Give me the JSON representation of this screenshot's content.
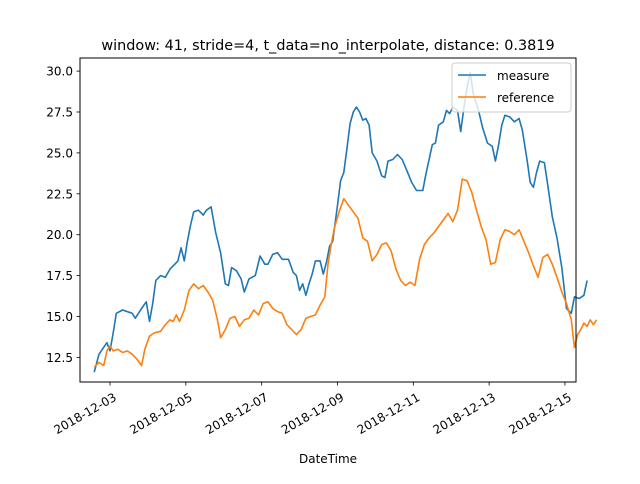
{
  "chart_data": {
    "type": "line",
    "title": "window: 41, stride=4, t_data=no_interpolate, distance: 0.3819",
    "xlabel": "DateTime",
    "ylabel": "",
    "ylim": [
      11.0,
      30.8
    ],
    "xlim": [
      "2018-12-02 05:00",
      "2018-12-15 07:00"
    ],
    "x_ticks": [
      "2018-12-03",
      "2018-12-05",
      "2018-12-07",
      "2018-12-09",
      "2018-12-11",
      "2018-12-13",
      "2018-12-15"
    ],
    "y_ticks": [
      "12.5",
      "15.0",
      "17.5",
      "20.0",
      "22.5",
      "25.0",
      "27.5",
      "30.0"
    ],
    "y_tick_values": [
      12.5,
      15.0,
      17.5,
      20.0,
      22.5,
      25.0,
      27.5,
      30.0
    ],
    "grid": false,
    "legend_position": "top-right",
    "series": [
      {
        "name": "measure",
        "color": "#1f77b4",
        "points": [
          [
            "2018-12-02 14:00",
            11.6
          ],
          [
            "2018-12-02 17:00",
            12.7
          ],
          [
            "2018-12-02 22:00",
            13.4
          ],
          [
            "2018-12-03 00:00",
            12.9
          ],
          [
            "2018-12-03 02:00",
            14.0
          ],
          [
            "2018-12-03 04:00",
            15.2
          ],
          [
            "2018-12-03 08:00",
            15.4
          ],
          [
            "2018-12-03 14:00",
            15.2
          ],
          [
            "2018-12-03 16:00",
            14.9
          ],
          [
            "2018-12-03 20:00",
            15.5
          ],
          [
            "2018-12-03 23:00",
            15.9
          ],
          [
            "2018-12-04 01:00",
            14.7
          ],
          [
            "2018-12-04 03:00",
            15.8
          ],
          [
            "2018-12-04 05:00",
            17.2
          ],
          [
            "2018-12-04 08:00",
            17.5
          ],
          [
            "2018-12-04 11:00",
            17.4
          ],
          [
            "2018-12-04 14:00",
            17.9
          ],
          [
            "2018-12-04 17:00",
            18.2
          ],
          [
            "2018-12-04 19:00",
            18.4
          ],
          [
            "2018-12-04 21:00",
            19.2
          ],
          [
            "2018-12-04 23:00",
            18.4
          ],
          [
            "2018-12-05 01:00",
            19.6
          ],
          [
            "2018-12-05 03:00",
            20.6
          ],
          [
            "2018-12-05 05:00",
            21.4
          ],
          [
            "2018-12-05 08:00",
            21.5
          ],
          [
            "2018-12-05 11:00",
            21.2
          ],
          [
            "2018-12-05 13:00",
            21.5
          ],
          [
            "2018-12-05 16:00",
            21.7
          ],
          [
            "2018-12-05 19:00",
            20.1
          ],
          [
            "2018-12-05 22:00",
            18.9
          ],
          [
            "2018-12-06 01:00",
            17.0
          ],
          [
            "2018-12-06 03:00",
            16.9
          ],
          [
            "2018-12-06 05:00",
            18.0
          ],
          [
            "2018-12-06 08:00",
            17.8
          ],
          [
            "2018-12-06 11:00",
            17.3
          ],
          [
            "2018-12-06 13:00",
            16.5
          ],
          [
            "2018-12-06 16:00",
            17.3
          ],
          [
            "2018-12-06 20:00",
            17.5
          ],
          [
            "2018-12-06 23:00",
            18.7
          ],
          [
            "2018-12-07 02:00",
            18.2
          ],
          [
            "2018-12-07 04:00",
            18.2
          ],
          [
            "2018-12-07 07:00",
            18.8
          ],
          [
            "2018-12-07 10:00",
            18.9
          ],
          [
            "2018-12-07 13:00",
            18.5
          ],
          [
            "2018-12-07 17:00",
            18.5
          ],
          [
            "2018-12-07 20:00",
            17.7
          ],
          [
            "2018-12-07 22:00",
            17.5
          ],
          [
            "2018-12-08 00:00",
            16.6
          ],
          [
            "2018-12-08 02:00",
            17.0
          ],
          [
            "2018-12-08 04:00",
            16.3
          ],
          [
            "2018-12-08 06:00",
            17.0
          ],
          [
            "2018-12-08 08:00",
            17.6
          ],
          [
            "2018-12-08 10:00",
            18.4
          ],
          [
            "2018-12-08 13:00",
            18.4
          ],
          [
            "2018-12-08 15:00",
            17.6
          ],
          [
            "2018-12-08 17:00",
            18.3
          ],
          [
            "2018-12-08 19:00",
            19.3
          ],
          [
            "2018-12-08 21:00",
            19.6
          ],
          [
            "2018-12-09 00:00",
            21.8
          ],
          [
            "2018-12-09 02:00",
            23.3
          ],
          [
            "2018-12-09 04:00",
            23.8
          ],
          [
            "2018-12-09 06:00",
            25.3
          ],
          [
            "2018-12-09 08:00",
            26.8
          ],
          [
            "2018-12-09 10:00",
            27.5
          ],
          [
            "2018-12-09 12:00",
            27.8
          ],
          [
            "2018-12-09 14:00",
            27.5
          ],
          [
            "2018-12-09 16:00",
            27.0
          ],
          [
            "2018-12-09 18:00",
            27.1
          ],
          [
            "2018-12-09 20:00",
            26.7
          ],
          [
            "2018-12-09 22:00",
            25.0
          ],
          [
            "2018-12-10 01:00",
            24.5
          ],
          [
            "2018-12-10 04:00",
            23.6
          ],
          [
            "2018-12-10 06:00",
            23.5
          ],
          [
            "2018-12-10 08:00",
            24.5
          ],
          [
            "2018-12-10 11:00",
            24.6
          ],
          [
            "2018-12-10 14:00",
            24.9
          ],
          [
            "2018-12-10 17:00",
            24.6
          ],
          [
            "2018-12-10 20:00",
            23.9
          ],
          [
            "2018-12-10 23:00",
            23.2
          ],
          [
            "2018-12-11 02:00",
            22.7
          ],
          [
            "2018-12-11 06:00",
            22.7
          ],
          [
            "2018-12-11 08:00",
            23.7
          ],
          [
            "2018-12-11 10:00",
            24.6
          ],
          [
            "2018-12-11 12:00",
            25.5
          ],
          [
            "2018-12-11 14:00",
            25.6
          ],
          [
            "2018-12-11 16:00",
            26.7
          ],
          [
            "2018-12-11 19:00",
            26.9
          ],
          [
            "2018-12-11 21:00",
            27.6
          ],
          [
            "2018-12-11 23:00",
            27.4
          ],
          [
            "2018-12-12 01:00",
            27.8
          ],
          [
            "2018-12-12 04:00",
            27.6
          ],
          [
            "2018-12-12 06:00",
            26.3
          ],
          [
            "2018-12-12 08:00",
            27.7
          ],
          [
            "2018-12-12 10:00",
            29.0
          ],
          [
            "2018-12-12 12:00",
            29.9
          ],
          [
            "2018-12-12 14:00",
            28.6
          ],
          [
            "2018-12-12 17:00",
            27.7
          ],
          [
            "2018-12-12 20:00",
            26.5
          ],
          [
            "2018-12-12 23:00",
            25.6
          ],
          [
            "2018-12-13 02:00",
            25.4
          ],
          [
            "2018-12-13 04:00",
            24.5
          ],
          [
            "2018-12-13 06:00",
            25.5
          ],
          [
            "2018-12-13 08:00",
            26.7
          ],
          [
            "2018-12-13 10:00",
            27.3
          ],
          [
            "2018-12-13 13:00",
            27.2
          ],
          [
            "2018-12-13 16:00",
            26.9
          ],
          [
            "2018-12-13 19:00",
            27.1
          ],
          [
            "2018-12-13 21:00",
            26.4
          ],
          [
            "2018-12-14 00:00",
            24.6
          ],
          [
            "2018-12-14 02:00",
            23.2
          ],
          [
            "2018-12-14 04:00",
            22.9
          ],
          [
            "2018-12-14 06:00",
            23.8
          ],
          [
            "2018-12-14 08:00",
            24.5
          ],
          [
            "2018-12-14 11:00",
            24.4
          ],
          [
            "2018-12-14 13:00",
            23.1
          ],
          [
            "2018-12-14 16:00",
            21.1
          ],
          [
            "2018-12-14 19:00",
            19.8
          ],
          [
            "2018-12-14 22:00",
            18.0
          ],
          [
            "2018-12-15 01:00",
            15.5
          ],
          [
            "2018-12-15 04:00",
            15.2
          ],
          [
            "2018-12-15 06:00",
            16.2
          ],
          [
            "2018-12-15 09:00",
            16.1
          ],
          [
            "2018-12-15 12:00",
            16.3
          ],
          [
            "2018-12-15 14:00",
            17.2
          ]
        ]
      },
      {
        "name": "reference",
        "color": "#ff7f0e",
        "points": [
          [
            "2018-12-02 14:00",
            11.9
          ],
          [
            "2018-12-02 17:00",
            12.2
          ],
          [
            "2018-12-02 20:00",
            12.0
          ],
          [
            "2018-12-02 22:00",
            12.9
          ],
          [
            "2018-12-03 00:00",
            13.2
          ],
          [
            "2018-12-03 02:00",
            12.9
          ],
          [
            "2018-12-03 05:00",
            13.0
          ],
          [
            "2018-12-03 08:00",
            12.8
          ],
          [
            "2018-12-03 11:00",
            12.9
          ],
          [
            "2018-12-03 14:00",
            12.7
          ],
          [
            "2018-12-03 17:00",
            12.4
          ],
          [
            "2018-12-03 20:00",
            12.0
          ],
          [
            "2018-12-03 22:00",
            13.0
          ],
          [
            "2018-12-04 01:00",
            13.8
          ],
          [
            "2018-12-04 04:00",
            14.0
          ],
          [
            "2018-12-04 08:00",
            14.1
          ],
          [
            "2018-12-04 11:00",
            14.5
          ],
          [
            "2018-12-04 14:00",
            14.8
          ],
          [
            "2018-12-04 16:00",
            14.7
          ],
          [
            "2018-12-04 18:00",
            15.1
          ],
          [
            "2018-12-04 20:00",
            14.7
          ],
          [
            "2018-12-04 23:00",
            15.4
          ],
          [
            "2018-12-05 02:00",
            16.6
          ],
          [
            "2018-12-05 05:00",
            17.0
          ],
          [
            "2018-12-05 08:00",
            16.7
          ],
          [
            "2018-12-05 11:00",
            16.9
          ],
          [
            "2018-12-05 14:00",
            16.5
          ],
          [
            "2018-12-05 17:00",
            16.0
          ],
          [
            "2018-12-05 20:00",
            14.8
          ],
          [
            "2018-12-05 22:00",
            13.7
          ],
          [
            "2018-12-06 01:00",
            14.2
          ],
          [
            "2018-12-06 04:00",
            14.9
          ],
          [
            "2018-12-06 07:00",
            15.0
          ],
          [
            "2018-12-06 10:00",
            14.4
          ],
          [
            "2018-12-06 13:00",
            14.8
          ],
          [
            "2018-12-06 16:00",
            14.9
          ],
          [
            "2018-12-06 19:00",
            15.4
          ],
          [
            "2018-12-06 22:00",
            15.1
          ],
          [
            "2018-12-07 01:00",
            15.8
          ],
          [
            "2018-12-07 04:00",
            15.9
          ],
          [
            "2018-12-07 07:00",
            15.5
          ],
          [
            "2018-12-07 10:00",
            15.3
          ],
          [
            "2018-12-07 13:00",
            15.2
          ],
          [
            "2018-12-07 16:00",
            14.5
          ],
          [
            "2018-12-07 19:00",
            14.2
          ],
          [
            "2018-12-07 22:00",
            13.9
          ],
          [
            "2018-12-08 01:00",
            14.2
          ],
          [
            "2018-12-08 04:00",
            14.9
          ],
          [
            "2018-12-08 07:00",
            15.0
          ],
          [
            "2018-12-08 10:00",
            15.1
          ],
          [
            "2018-12-08 13:00",
            15.7
          ],
          [
            "2018-12-08 16:00",
            16.2
          ],
          [
            "2018-12-08 18:00",
            18.2
          ],
          [
            "2018-12-08 20:00",
            19.4
          ],
          [
            "2018-12-08 22:00",
            20.4
          ],
          [
            "2018-12-09 01:00",
            21.4
          ],
          [
            "2018-12-09 04:00",
            22.2
          ],
          [
            "2018-12-09 07:00",
            21.8
          ],
          [
            "2018-12-09 10:00",
            21.4
          ],
          [
            "2018-12-09 13:00",
            21.0
          ],
          [
            "2018-12-09 16:00",
            19.8
          ],
          [
            "2018-12-09 19:00",
            19.6
          ],
          [
            "2018-12-09 22:00",
            18.4
          ],
          [
            "2018-12-10 01:00",
            18.8
          ],
          [
            "2018-12-10 04:00",
            19.4
          ],
          [
            "2018-12-10 07:00",
            19.5
          ],
          [
            "2018-12-10 10:00",
            19.0
          ],
          [
            "2018-12-10 13:00",
            17.9
          ],
          [
            "2018-12-10 16:00",
            17.2
          ],
          [
            "2018-12-10 19:00",
            16.9
          ],
          [
            "2018-12-10 22:00",
            17.1
          ],
          [
            "2018-12-11 01:00",
            16.9
          ],
          [
            "2018-12-11 04:00",
            18.5
          ],
          [
            "2018-12-11 07:00",
            19.4
          ],
          [
            "2018-12-11 10:00",
            19.8
          ],
          [
            "2018-12-11 13:00",
            20.1
          ],
          [
            "2018-12-11 16:00",
            20.5
          ],
          [
            "2018-12-11 19:00",
            20.9
          ],
          [
            "2018-12-11 22:00",
            21.3
          ],
          [
            "2018-12-12 01:00",
            20.8
          ],
          [
            "2018-12-12 04:00",
            21.5
          ],
          [
            "2018-12-12 07:00",
            23.4
          ],
          [
            "2018-12-12 10:00",
            23.3
          ],
          [
            "2018-12-12 13:00",
            22.6
          ],
          [
            "2018-12-12 16:00",
            21.5
          ],
          [
            "2018-12-12 19:00",
            20.5
          ],
          [
            "2018-12-12 22:00",
            19.7
          ],
          [
            "2018-12-13 01:00",
            18.2
          ],
          [
            "2018-12-13 04:00",
            18.3
          ],
          [
            "2018-12-13 07:00",
            19.7
          ],
          [
            "2018-12-13 10:00",
            20.3
          ],
          [
            "2018-12-13 13:00",
            20.2
          ],
          [
            "2018-12-13 16:00",
            20.0
          ],
          [
            "2018-12-13 19:00",
            20.3
          ],
          [
            "2018-12-13 22:00",
            19.6
          ],
          [
            "2018-12-14 01:00",
            18.9
          ],
          [
            "2018-12-14 04:00",
            18.1
          ],
          [
            "2018-12-14 07:00",
            17.4
          ],
          [
            "2018-12-14 10:00",
            18.6
          ],
          [
            "2018-12-14 13:00",
            18.8
          ],
          [
            "2018-12-14 16:00",
            18.2
          ],
          [
            "2018-12-14 19:00",
            17.4
          ],
          [
            "2018-12-14 22:00",
            16.5
          ],
          [
            "2018-12-15 01:00",
            15.8
          ],
          [
            "2018-12-15 04:00",
            14.8
          ],
          [
            "2018-12-15 06:00",
            13.1
          ],
          [
            "2018-12-15 08:00",
            13.9
          ],
          [
            "2018-12-15 10:00",
            14.2
          ],
          [
            "2018-12-15 12:00",
            14.6
          ],
          [
            "2018-12-15 14:00",
            14.4
          ],
          [
            "2018-12-15 16:00",
            14.8
          ],
          [
            "2018-12-15 18:00",
            14.5
          ],
          [
            "2018-12-15 20:00",
            14.8
          ]
        ]
      }
    ]
  }
}
